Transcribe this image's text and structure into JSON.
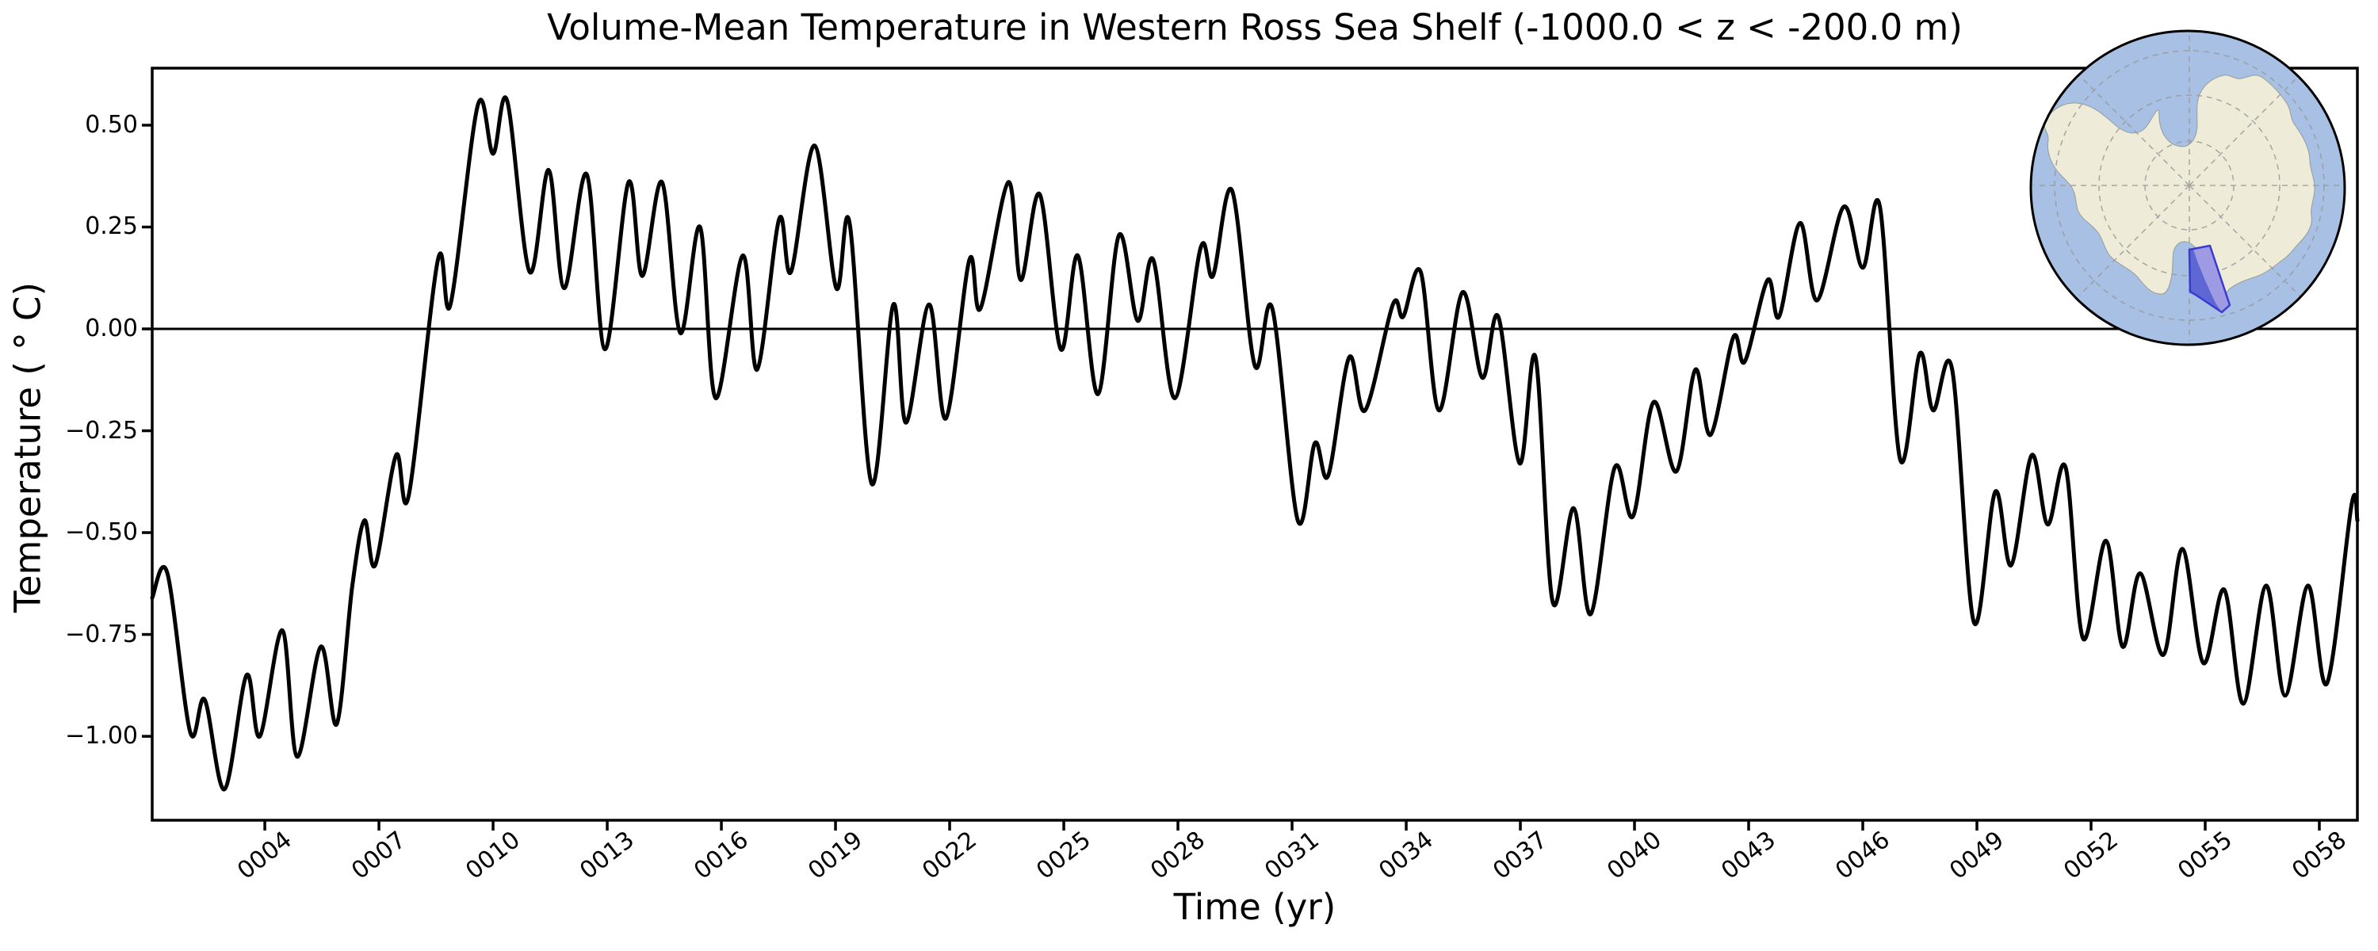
{
  "title": "Volume-Mean Temperature in Western Ross Sea Shelf (-1000.0 < z < -200.0 m)",
  "axes": {
    "xlabel": "Time (yr)",
    "ylabel": "Temperature ( ° C)"
  },
  "chart_data": {
    "type": "line",
    "title": "Volume-Mean Temperature in Western Ross Sea Shelf (-1000.0 < z < -200.0 m)",
    "xlabel": "Time (yr)",
    "ylabel": "Temperature ( ° C)",
    "xlim": [
      1.04,
      59.0
    ],
    "ylim": [
      -1.206,
      0.64
    ],
    "grid": false,
    "legend": "none",
    "zero_line_y": 0.0,
    "line_color": "#000000",
    "line_width": 5,
    "x_ticks": [
      {
        "label": "0004",
        "value": 4
      },
      {
        "label": "0007",
        "value": 7
      },
      {
        "label": "0010",
        "value": 10
      },
      {
        "label": "0013",
        "value": 13
      },
      {
        "label": "0016",
        "value": 16
      },
      {
        "label": "0019",
        "value": 19
      },
      {
        "label": "0022",
        "value": 22
      },
      {
        "label": "0025",
        "value": 25
      },
      {
        "label": "0028",
        "value": 28
      },
      {
        "label": "0031",
        "value": 31
      },
      {
        "label": "0034",
        "value": 34
      },
      {
        "label": "0037",
        "value": 37
      },
      {
        "label": "0040",
        "value": 40
      },
      {
        "label": "0043",
        "value": 43
      },
      {
        "label": "0046",
        "value": 46
      },
      {
        "label": "0049",
        "value": 49
      },
      {
        "label": "0052",
        "value": 52
      },
      {
        "label": "0055",
        "value": 55
      },
      {
        "label": "0058",
        "value": 58
      }
    ],
    "y_ticks": [
      {
        "label": "0.50",
        "value": 0.5
      },
      {
        "label": "0.25",
        "value": 0.25
      },
      {
        "label": "0.00",
        "value": 0.0
      },
      {
        "label": "−0.25",
        "value": -0.25
      },
      {
        "label": "−0.50",
        "value": -0.5
      },
      {
        "label": "−0.75",
        "value": -0.75
      },
      {
        "label": "−1.00",
        "value": -1.0
      }
    ],
    "series": [
      {
        "name": "volume-mean temperature",
        "units": "degC",
        "points": [
          [
            1.04,
            -0.66
          ],
          [
            1.44,
            -0.6
          ],
          [
            2.04,
            -0.99
          ],
          [
            2.42,
            -0.91
          ],
          [
            2.94,
            -1.13
          ],
          [
            3.52,
            -0.85
          ],
          [
            3.87,
            -1.0
          ],
          [
            4.46,
            -0.74
          ],
          [
            4.85,
            -1.05
          ],
          [
            5.47,
            -0.78
          ],
          [
            5.89,
            -0.97
          ],
          [
            6.3,
            -0.63
          ],
          [
            6.62,
            -0.47
          ],
          [
            6.9,
            -0.58
          ],
          [
            7.45,
            -0.31
          ],
          [
            7.78,
            -0.41
          ],
          [
            8.55,
            0.17
          ],
          [
            8.88,
            0.06
          ],
          [
            9.6,
            0.55
          ],
          [
            10.0,
            0.43
          ],
          [
            10.37,
            0.56
          ],
          [
            10.96,
            0.14
          ],
          [
            11.46,
            0.39
          ],
          [
            11.87,
            0.1
          ],
          [
            12.46,
            0.38
          ],
          [
            12.94,
            -0.05
          ],
          [
            13.56,
            0.36
          ],
          [
            13.92,
            0.13
          ],
          [
            14.44,
            0.36
          ],
          [
            14.92,
            -0.01
          ],
          [
            15.44,
            0.25
          ],
          [
            15.85,
            -0.17
          ],
          [
            16.56,
            0.18
          ],
          [
            16.94,
            -0.1
          ],
          [
            17.52,
            0.27
          ],
          [
            17.83,
            0.14
          ],
          [
            18.45,
            0.45
          ],
          [
            19.02,
            0.1
          ],
          [
            19.37,
            0.26
          ],
          [
            19.95,
            -0.38
          ],
          [
            20.52,
            0.06
          ],
          [
            20.85,
            -0.23
          ],
          [
            21.46,
            0.06
          ],
          [
            21.9,
            -0.22
          ],
          [
            22.52,
            0.17
          ],
          [
            22.81,
            0.05
          ],
          [
            23.54,
            0.36
          ],
          [
            23.87,
            0.12
          ],
          [
            24.37,
            0.33
          ],
          [
            24.92,
            -0.05
          ],
          [
            25.37,
            0.18
          ],
          [
            25.9,
            -0.16
          ],
          [
            26.45,
            0.23
          ],
          [
            26.94,
            0.02
          ],
          [
            27.35,
            0.17
          ],
          [
            27.92,
            -0.17
          ],
          [
            28.6,
            0.2
          ],
          [
            28.92,
            0.13
          ],
          [
            29.42,
            0.34
          ],
          [
            30.02,
            -0.09
          ],
          [
            30.48,
            0.05
          ],
          [
            31.15,
            -0.47
          ],
          [
            31.6,
            -0.28
          ],
          [
            31.95,
            -0.36
          ],
          [
            32.5,
            -0.07
          ],
          [
            32.92,
            -0.2
          ],
          [
            33.65,
            0.06
          ],
          [
            33.92,
            0.03
          ],
          [
            34.38,
            0.14
          ],
          [
            34.86,
            -0.2
          ],
          [
            35.48,
            0.09
          ],
          [
            36.0,
            -0.12
          ],
          [
            36.42,
            0.03
          ],
          [
            36.98,
            -0.33
          ],
          [
            37.4,
            -0.07
          ],
          [
            37.85,
            -0.67
          ],
          [
            38.4,
            -0.44
          ],
          [
            38.85,
            -0.7
          ],
          [
            39.48,
            -0.34
          ],
          [
            39.96,
            -0.46
          ],
          [
            40.5,
            -0.18
          ],
          [
            41.1,
            -0.35
          ],
          [
            41.6,
            -0.1
          ],
          [
            42.0,
            -0.26
          ],
          [
            42.6,
            -0.02
          ],
          [
            42.9,
            -0.08
          ],
          [
            43.5,
            0.12
          ],
          [
            43.8,
            0.03
          ],
          [
            44.35,
            0.26
          ],
          [
            44.8,
            0.07
          ],
          [
            45.5,
            0.3
          ],
          [
            46.0,
            0.15
          ],
          [
            46.45,
            0.3
          ],
          [
            46.98,
            -0.32
          ],
          [
            47.5,
            -0.06
          ],
          [
            47.85,
            -0.2
          ],
          [
            48.35,
            -0.1
          ],
          [
            48.92,
            -0.72
          ],
          [
            49.48,
            -0.4
          ],
          [
            49.9,
            -0.58
          ],
          [
            50.44,
            -0.31
          ],
          [
            50.86,
            -0.48
          ],
          [
            51.33,
            -0.34
          ],
          [
            51.79,
            -0.76
          ],
          [
            52.39,
            -0.52
          ],
          [
            52.83,
            -0.78
          ],
          [
            53.29,
            -0.6
          ],
          [
            53.9,
            -0.8
          ],
          [
            54.4,
            -0.54
          ],
          [
            54.95,
            -0.82
          ],
          [
            55.5,
            -0.64
          ],
          [
            56.0,
            -0.92
          ],
          [
            56.6,
            -0.63
          ],
          [
            57.1,
            -0.9
          ],
          [
            57.7,
            -0.63
          ],
          [
            58.2,
            -0.87
          ],
          [
            58.85,
            -0.43
          ],
          [
            59.0,
            -0.47
          ]
        ]
      }
    ]
  },
  "inset_map": {
    "ocean_color": "#a7c0e3",
    "land_color": "#eeecd9",
    "coast_color": "#6f7262",
    "graticule_color": "#999999",
    "border_color": "#000000",
    "region_over_ocean_color": "#5e68d5",
    "region_over_land_color": "#9e9be4",
    "region_border_color": "#3b3bd1"
  }
}
